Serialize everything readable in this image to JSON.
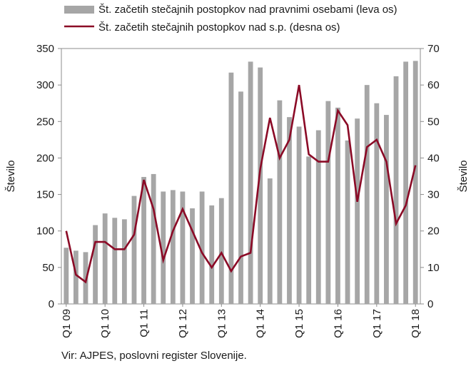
{
  "chart_data": {
    "type": "bar+line",
    "x": [
      "Q1 09",
      "Q2 09",
      "Q3 09",
      "Q4 09",
      "Q1 10",
      "Q2 10",
      "Q3 10",
      "Q4 10",
      "Q1 11",
      "Q2 11",
      "Q3 11",
      "Q4 11",
      "Q1 12",
      "Q2 12",
      "Q3 12",
      "Q4 12",
      "Q1 13",
      "Q2 13",
      "Q3 13",
      "Q4 13",
      "Q1 14",
      "Q2 14",
      "Q3 14",
      "Q4 14",
      "Q1 15",
      "Q2 15",
      "Q3 15",
      "Q4 15",
      "Q1 16",
      "Q2 16",
      "Q3 16",
      "Q4 16",
      "Q1 17",
      "Q2 17",
      "Q3 17",
      "Q4 17",
      "Q1 18"
    ],
    "x_tick_labels": [
      "Q1 09",
      "Q1 10",
      "Q1 11",
      "Q1 12",
      "Q1 13",
      "Q1 14",
      "Q1 15",
      "Q1 16",
      "Q1 17",
      "Q1 18"
    ],
    "x_tick_indices": [
      0,
      4,
      8,
      12,
      16,
      20,
      24,
      28,
      32,
      36
    ],
    "series": [
      {
        "name": "Št. začetih stečajnih postopkov nad pravnimi osebami (leva os)",
        "kind": "bar",
        "axis": "left",
        "color": "#a6a6a6",
        "values": [
          77,
          73,
          71,
          108,
          124,
          118,
          116,
          148,
          174,
          178,
          154,
          156,
          154,
          131,
          154,
          135,
          145,
          317,
          291,
          332,
          324,
          172,
          279,
          256,
          243,
          202,
          238,
          278,
          269,
          224,
          254,
          300,
          275,
          259,
          312,
          332,
          333
        ]
      },
      {
        "name": "Št. začetih stečajnih postopkov nad s.p. (desna os)",
        "kind": "line",
        "axis": "right",
        "color": "#8b0a26",
        "values": [
          20,
          8,
          6,
          17,
          17,
          15,
          15,
          19,
          34,
          26,
          12,
          20,
          26,
          20,
          14,
          10,
          14,
          9,
          13,
          14,
          37,
          51,
          40,
          45,
          60,
          41,
          39,
          39,
          53,
          49,
          28,
          43,
          45,
          39,
          22,
          27,
          38
        ]
      }
    ],
    "y_left": {
      "label": "Število",
      "min": 0,
      "max": 350,
      "ticks": [
        0,
        50,
        100,
        150,
        200,
        250,
        300,
        350
      ]
    },
    "y_right": {
      "label": "Število",
      "min": 0,
      "max": 70,
      "ticks": [
        0,
        10,
        20,
        30,
        40,
        50,
        60,
        70
      ]
    },
    "legend": "top",
    "grid": false
  },
  "source": "Vir: AJPES, poslovni register Slovenije."
}
